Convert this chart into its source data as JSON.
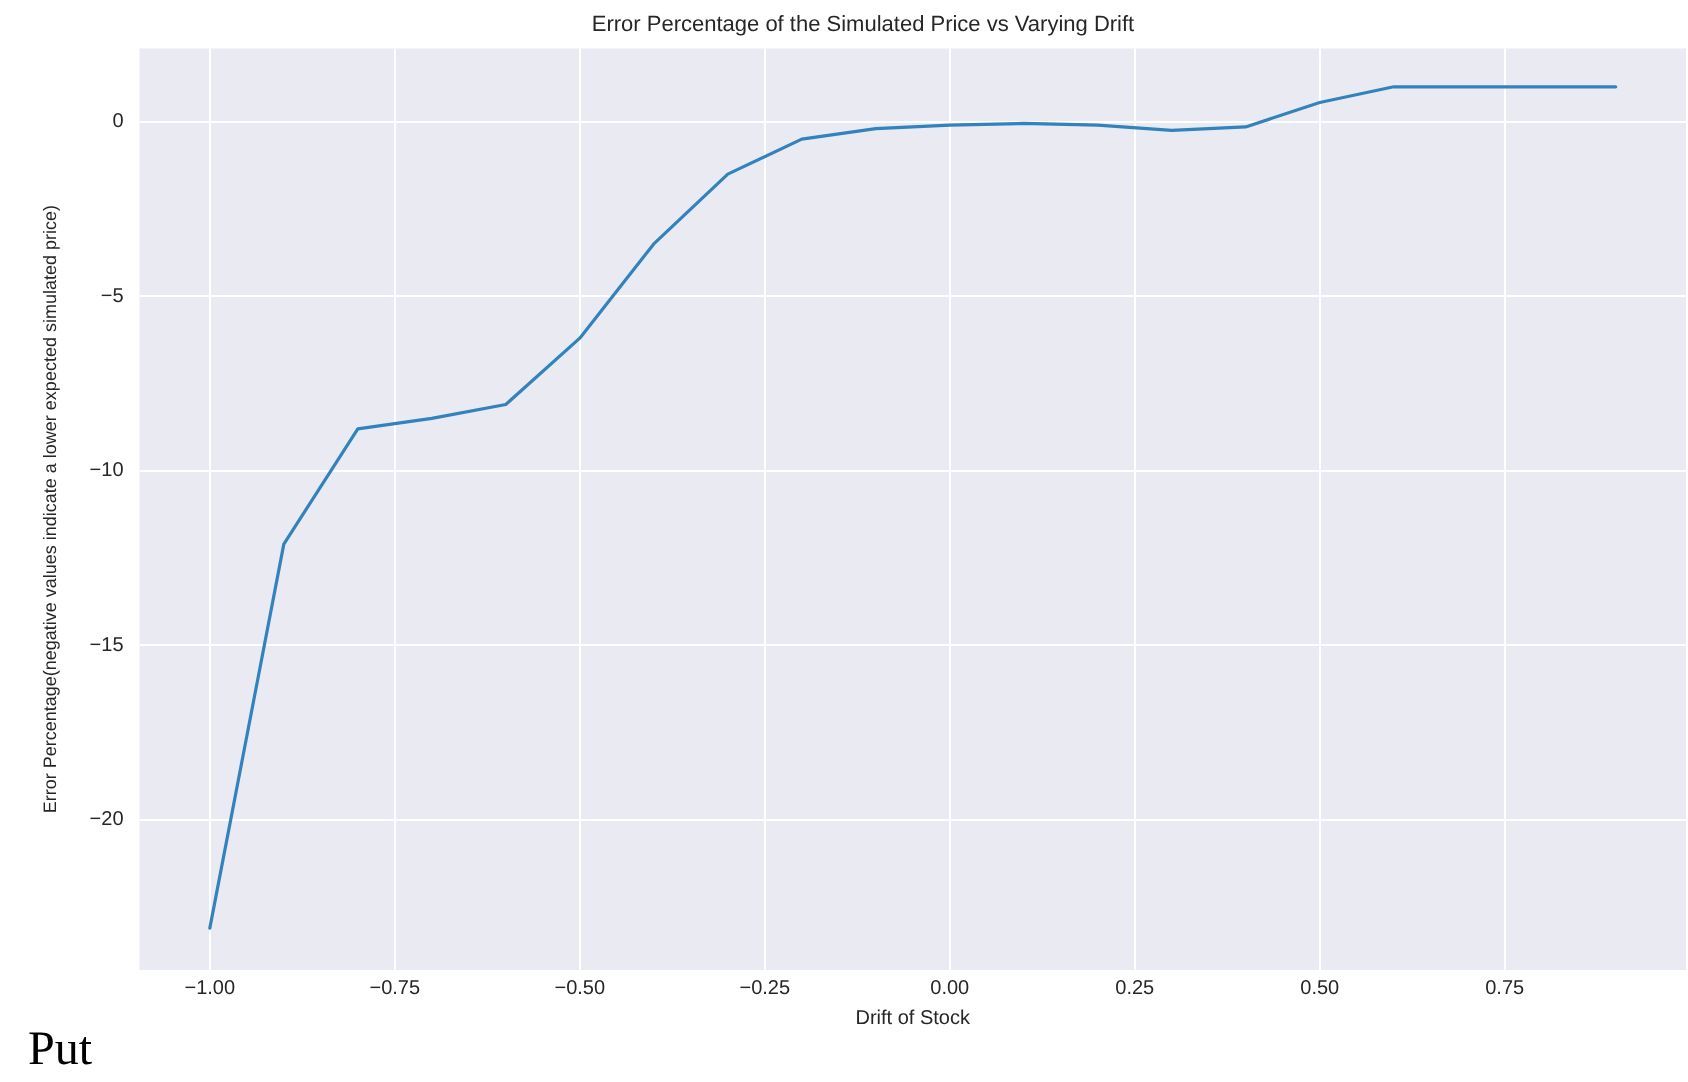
{
  "chart_data": {
    "type": "line",
    "title": "Error Percentage of the Simulated Price vs Varying Drift",
    "xlabel": "Drift of Stock",
    "ylabel": "Error Percentage(negative values indicate a lower expected simulated price)",
    "x": [
      -1.0,
      -0.9,
      -0.8,
      -0.7,
      -0.6,
      -0.5,
      -0.4,
      -0.3,
      -0.2,
      -0.1,
      0.0,
      0.1,
      0.2,
      0.3,
      0.4,
      0.5,
      0.6,
      0.7,
      0.8,
      0.9
    ],
    "series": [
      {
        "color": "#3182bd",
        "values": [
          -23.1,
          -12.1,
          -8.8,
          -8.5,
          -8.1,
          -6.2,
          -3.5,
          -1.5,
          -0.5,
          -0.2,
          -0.1,
          -0.05,
          -0.1,
          -0.25,
          -0.15,
          0.55,
          1.0,
          1.0,
          1.0,
          1.0
        ]
      }
    ],
    "xlim": [
      -1.095,
      0.995
    ],
    "ylim": [
      -24.3,
      2.1
    ],
    "xticks": [
      {
        "value": -1.0,
        "label": "−1.00"
      },
      {
        "value": -0.75,
        "label": "−0.75"
      },
      {
        "value": -0.5,
        "label": "−0.50"
      },
      {
        "value": -0.25,
        "label": "−0.25"
      },
      {
        "value": 0,
        "label": "0.00"
      },
      {
        "value": 0.25,
        "label": "0.25"
      },
      {
        "value": 0.5,
        "label": "0.50"
      },
      {
        "value": 0.75,
        "label": "0.75"
      }
    ],
    "yticks": [
      {
        "value": -20,
        "label": "−20"
      },
      {
        "value": -15,
        "label": "−15"
      },
      {
        "value": -10,
        "label": "−10"
      },
      {
        "value": -5,
        "label": "−5"
      },
      0
    ],
    "grid": true,
    "legend": false,
    "marker": "none",
    "line_style": "solid",
    "annotations": [
      "Put"
    ]
  }
}
